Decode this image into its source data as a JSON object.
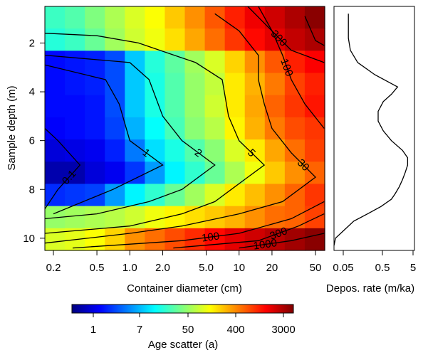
{
  "chart_data": [
    {
      "type": "heatmap",
      "xlabel": "Container diameter (cm)",
      "ylabel": "Sample depth (m)",
      "x_scale": "log",
      "x_ticks": [
        0.2,
        0.5,
        1.0,
        2.0,
        5.0,
        10,
        20,
        50
      ],
      "x_tick_labels": [
        "0.2",
        "0.5",
        "1.0",
        "2.0",
        "5.0",
        "10",
        "20",
        "50"
      ],
      "y_ticks": [
        2,
        4,
        6,
        8,
        10
      ],
      "y_tick_labels": [
        "2",
        "4",
        "6",
        "8",
        "10"
      ],
      "ylim": [
        0.5,
        10.5
      ],
      "y_reversed": true,
      "grid": false,
      "color_scale_ticks": [
        "1",
        "7",
        "50",
        "400",
        "3000"
      ],
      "color_scale_label": "Age scatter (a)",
      "colormap": [
        "#00007f",
        "#0000ff",
        "#007fff",
        "#00ffff",
        "#7fff7f",
        "#ffff00",
        "#ff7f00",
        "#ff0000",
        "#7f0000"
      ],
      "grid_values": [
        [
          3.9,
          4.1,
          4.5,
          4.9,
          5.3,
          5.6,
          6.1,
          6.6,
          7.1,
          7.6,
          8.0,
          8.3,
          8.6,
          8.9
        ],
        [
          3.7,
          3.9,
          4.3,
          4.8,
          5.2,
          5.5,
          5.9,
          6.4,
          6.9,
          7.4,
          7.8,
          8.1,
          8.4,
          8.6
        ],
        [
          1.2,
          1.3,
          1.4,
          1.8,
          2.9,
          3.7,
          4.2,
          4.8,
          5.3,
          6.0,
          6.6,
          7.1,
          7.6,
          7.9
        ],
        [
          1.2,
          1.3,
          1.4,
          1.8,
          2.9,
          3.6,
          4.1,
          4.7,
          5.1,
          5.8,
          6.3,
          6.8,
          7.3,
          7.6
        ],
        [
          1.2,
          1.2,
          1.3,
          1.8,
          2.9,
          3.6,
          4.1,
          4.7,
          5.2,
          5.8,
          6.4,
          7.0,
          7.4,
          7.7
        ],
        [
          1.1,
          1.2,
          1.3,
          1.7,
          2.7,
          3.4,
          4.0,
          4.6,
          5.0,
          5.7,
          6.3,
          6.8,
          7.2,
          7.4
        ],
        [
          0.8,
          0.9,
          1.0,
          1.4,
          2.2,
          3.1,
          3.6,
          4.1,
          4.6,
          5.3,
          5.8,
          6.4,
          6.9,
          7.3
        ],
        [
          0.4,
          0.4,
          0.8,
          1.0,
          1.6,
          2.5,
          3.3,
          3.8,
          4.3,
          4.9,
          5.5,
          6.1,
          6.6,
          7.0
        ],
        [
          1.5,
          1.6,
          1.7,
          2.5,
          3.3,
          3.8,
          4.3,
          4.8,
          5.3,
          5.8,
          6.2,
          6.6,
          7.0,
          7.4
        ],
        [
          4.7,
          4.8,
          4.9,
          5.0,
          5.2,
          5.5,
          5.7,
          5.9,
          6.1,
          6.3,
          6.6,
          6.9,
          7.0,
          7.3
        ],
        [
          5.3,
          5.4,
          5.6,
          6.0,
          6.6,
          6.9,
          7.2,
          7.5,
          7.8,
          8.1,
          8.3,
          8.5,
          8.7,
          8.9
        ]
      ],
      "contours": [
        {
          "label": "0.1",
          "points": [
            [
              0.15,
              8.8
            ],
            [
              0.22,
              8.0
            ],
            [
              0.35,
              7.0
            ],
            [
              0.22,
              6.0
            ],
            [
              0.15,
              5.5
            ]
          ]
        },
        {
          "label": "1",
          "points": [
            [
              0.2,
              9.0
            ],
            [
              0.7,
              8.0
            ],
            [
              2.0,
              7.0
            ],
            [
              1.0,
              6.0
            ],
            [
              0.8,
              4.5
            ],
            [
              0.6,
              3.5
            ],
            [
              0.15,
              2.9
            ]
          ]
        },
        {
          "label": "2",
          "points": [
            [
              0.15,
              9.2
            ],
            [
              0.5,
              9.0
            ],
            [
              1.5,
              8.5
            ],
            [
              3.0,
              8.0
            ],
            [
              6.0,
              7.0
            ],
            [
              3.0,
              6.0
            ],
            [
              2.0,
              5.0
            ],
            [
              1.5,
              3.5
            ],
            [
              1.0,
              2.8
            ],
            [
              0.15,
              2.5
            ]
          ]
        },
        {
          "label": "5",
          "points": [
            [
              0.15,
              9.8
            ],
            [
              1.0,
              9.5
            ],
            [
              3.0,
              9.0
            ],
            [
              6.0,
              8.5
            ],
            [
              12,
              7.5
            ],
            [
              17,
              7.0
            ],
            [
              10,
              6.0
            ],
            [
              8.0,
              5.0
            ],
            [
              7.0,
              3.5
            ],
            [
              4.0,
              2.8
            ],
            [
              1.2,
              2.0
            ],
            [
              0.5,
              1.7
            ],
            [
              0.15,
              1.6
            ]
          ]
        },
        {
          "label": "30",
          "points": [
            [
              0.15,
              10.2
            ],
            [
              1.0,
              9.8
            ],
            [
              3.0,
              9.5
            ],
            [
              10,
              9.0
            ],
            [
              25,
              8.5
            ],
            [
              50,
              7.5
            ],
            [
              30,
              6.5
            ],
            [
              20,
              5.5
            ],
            [
              17,
              4.5
            ],
            [
              15,
              3.5
            ],
            [
              15,
              2.5
            ],
            [
              10,
              1.5
            ],
            [
              6.0,
              0.8
            ]
          ]
        },
        {
          "label": "100",
          "points": [
            [
              0.3,
              10.4
            ],
            [
              3.0,
              10.1
            ],
            [
              10,
              9.8
            ],
            [
              30,
              9.2
            ],
            [
              60,
              8.5
            ]
          ]
        },
        {
          "label": "100",
          "points": [
            [
              60,
              5.5
            ],
            [
              40,
              4.5
            ],
            [
              30,
              3.5
            ],
            [
              25,
              2.5
            ],
            [
              20,
              1.5
            ],
            [
              15,
              0.5
            ]
          ]
        },
        {
          "label": "300",
          "points": [
            [
              2.5,
              10.4
            ],
            [
              15,
              10.1
            ],
            [
              35,
              9.5
            ],
            [
              60,
              9.0
            ]
          ]
        },
        {
          "label": "300",
          "points": [
            [
              60,
              2.8
            ],
            [
              30,
              2.3
            ],
            [
              18,
              1.3
            ],
            [
              12,
              0.5
            ]
          ]
        },
        {
          "label": "1000",
          "points": [
            [
              10,
              10.4
            ],
            [
              30,
              10.1
            ],
            [
              60,
              9.8
            ]
          ]
        },
        {
          "label": "",
          "points": [
            [
              40,
              0.9
            ],
            [
              50,
              1.9
            ],
            [
              60,
              2.1
            ]
          ]
        }
      ]
    },
    {
      "type": "line",
      "xlabel": "Depos. rate (m/ka)",
      "x_scale": "log",
      "x_ticks": [
        0.05,
        0.5,
        5
      ],
      "x_tick_labels": [
        "0.05",
        "0.5",
        "5"
      ],
      "ylim": [
        0.5,
        10.5
      ],
      "y_reversed": true,
      "points": [
        [
          0.07,
          0.8
        ],
        [
          0.07,
          1.3
        ],
        [
          0.07,
          1.8
        ],
        [
          0.08,
          2.3
        ],
        [
          0.13,
          2.8
        ],
        [
          0.4,
          3.3
        ],
        [
          1.8,
          3.8
        ],
        [
          1.2,
          4.1
        ],
        [
          0.7,
          4.4
        ],
        [
          0.5,
          4.8
        ],
        [
          0.5,
          5.2
        ],
        [
          0.7,
          5.6
        ],
        [
          1.2,
          6.0
        ],
        [
          2.5,
          6.4
        ],
        [
          3.5,
          6.7
        ],
        [
          3.5,
          7.0
        ],
        [
          3.0,
          7.3
        ],
        [
          2.5,
          7.6
        ],
        [
          2.0,
          7.9
        ],
        [
          1.5,
          8.2
        ],
        [
          1.2,
          8.4
        ],
        [
          0.6,
          8.7
        ],
        [
          0.25,
          9.0
        ],
        [
          0.1,
          9.3
        ],
        [
          0.05,
          9.7
        ],
        [
          0.03,
          10.0
        ],
        [
          0.025,
          10.3
        ]
      ]
    }
  ]
}
